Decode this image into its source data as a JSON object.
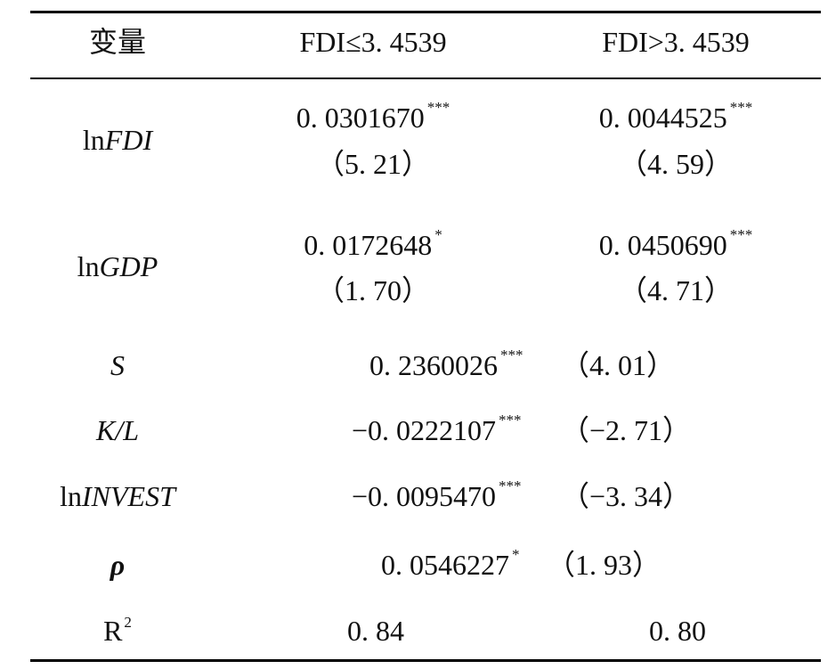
{
  "header": {
    "variable": "变量",
    "col1": "FDI≤3. 4539",
    "col2": "FDI>3. 4539"
  },
  "rows": {
    "lnfdi": {
      "prefix": "ln",
      "italic": "FDI",
      "c1_coef": "0. 0301670",
      "c1_sig": "***",
      "c1_t": "（5. 21）",
      "c2_coef": "0. 0044525",
      "c2_sig": "***",
      "c2_t": "（4. 59）"
    },
    "lngdp": {
      "prefix": "ln",
      "italic": "GDP",
      "c1_coef": "0. 0172648",
      "c1_sig": "*",
      "c1_t": "（1. 70）",
      "c2_coef": "0. 0450690",
      "c2_sig": "***",
      "c2_t": "（4. 71）"
    },
    "s": {
      "italic": "S",
      "coef": "0. 2360026",
      "sig": "***",
      "t": "（4. 01）"
    },
    "kl": {
      "italic": "K/L",
      "coef": "−0. 0222107",
      "sig": "***",
      "t": "（−2. 71）"
    },
    "lninvest": {
      "prefix": "ln",
      "italic": "INVEST",
      "coef": "−0. 0095470",
      "sig": "***",
      "t": "（−3. 34）"
    },
    "rho": {
      "symbol": "ρ",
      "coef": "0. 0546227",
      "sig": "*",
      "t": "（1. 93）"
    },
    "r2": {
      "label": "R",
      "sup": "2",
      "c1": "0. 84",
      "c2": "0. 80"
    }
  }
}
